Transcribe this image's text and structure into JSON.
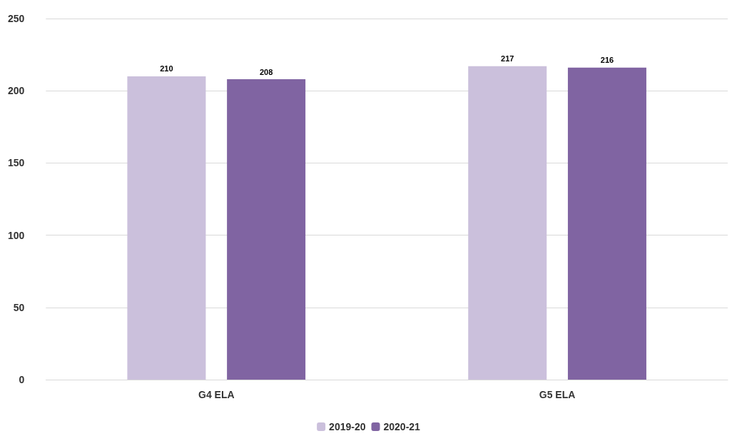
{
  "chart_data": {
    "type": "bar",
    "categories": [
      "G4 ELA",
      "G5 ELA"
    ],
    "series": [
      {
        "name": "2019-20",
        "color": "#cbc0dc",
        "values": [
          210,
          217
        ]
      },
      {
        "name": "2020-21",
        "color": "#8064a2",
        "values": [
          208,
          216
        ]
      }
    ],
    "ylim": [
      0,
      250
    ],
    "yticks": [
      0,
      50,
      100,
      150,
      200,
      250
    ],
    "grid": "y",
    "legend": "bottom",
    "data_labels": true
  }
}
